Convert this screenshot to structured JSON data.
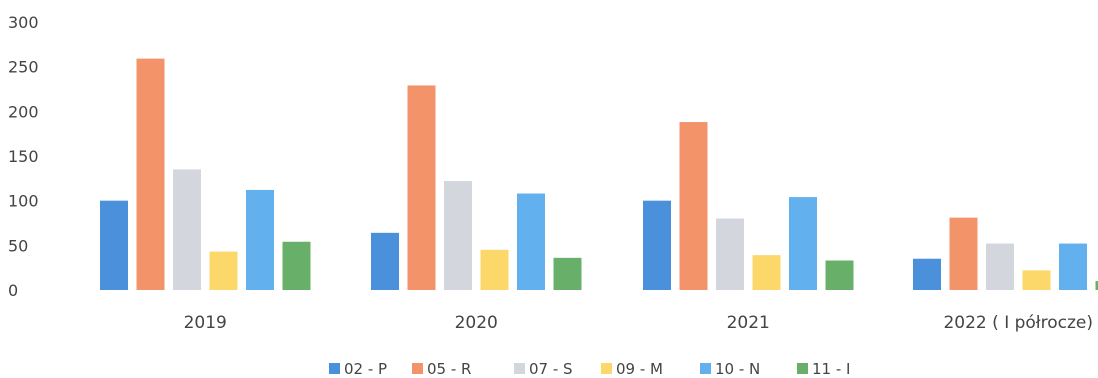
{
  "chart_data": {
    "type": "bar",
    "title": "",
    "xlabel": "",
    "ylabel": "",
    "categories": [
      "2019",
      "2020",
      "2021",
      "2022 ( I półrocze)"
    ],
    "yticks": [
      "0",
      "50",
      "100",
      "150",
      "200",
      "250",
      "300"
    ],
    "ylim": [
      0,
      300
    ],
    "grid": false,
    "legend_position": "bottom",
    "series": [
      {
        "name": "02 - P",
        "color": "#4A90DB",
        "values": [
          100,
          64,
          100,
          35
        ]
      },
      {
        "name": "05 - R",
        "color": "#F2936A",
        "values": [
          259,
          229,
          188,
          81
        ]
      },
      {
        "name": "07 - S",
        "color": "#D4D6DE",
        "values": [
          135,
          122,
          80,
          52
        ]
      },
      {
        "name": "09 - M",
        "color": "#FCD86A",
        "values": [
          43,
          45,
          39,
          22
        ]
      },
      {
        "name": "10 - N",
        "color": "#62B0EE",
        "values": [
          112,
          108,
          104,
          52
        ]
      },
      {
        "name": "11 - I",
        "color": "#68B06A",
        "values": [
          54,
          36,
          33,
          10
        ]
      }
    ]
  }
}
